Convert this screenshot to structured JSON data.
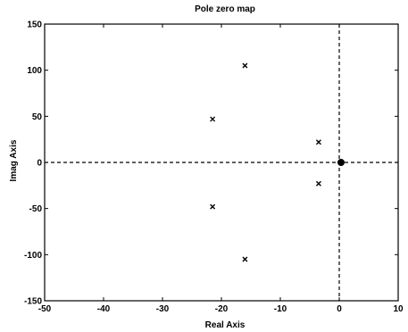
{
  "chart_data": {
    "type": "scatter",
    "title": "Pole zero map",
    "xlabel": "Real Axis",
    "ylabel": "Imag Axis",
    "xlim": [
      -50,
      10
    ],
    "ylim": [
      -150,
      150
    ],
    "xticks": [
      -50,
      -40,
      -30,
      -20,
      -10,
      0,
      10
    ],
    "yticks": [
      -150,
      -100,
      -50,
      0,
      50,
      100,
      150
    ],
    "xtick_labels": [
      "-50",
      "-40",
      "-30",
      "-20",
      "-10",
      "0",
      "10"
    ],
    "ytick_labels": [
      "-150",
      "-100",
      "-50",
      "0",
      "50",
      "100",
      "150"
    ],
    "grid": false,
    "reference_lines": {
      "x": 0,
      "y": 0,
      "style": "dashed"
    },
    "series": [
      {
        "marker": "x",
        "points": [
          {
            "x": -16,
            "y": 105
          },
          {
            "x": -21.5,
            "y": 47
          },
          {
            "x": -3.5,
            "y": 22
          },
          {
            "x": -3.5,
            "y": -23
          },
          {
            "x": -21.5,
            "y": -48
          },
          {
            "x": -16,
            "y": -105
          }
        ]
      },
      {
        "marker": "o",
        "points": [
          {
            "x": 0.3,
            "y": 0
          }
        ]
      }
    ],
    "colors": {
      "axes": "#000000",
      "markers": "#000000",
      "background": "#ffffff"
    }
  }
}
